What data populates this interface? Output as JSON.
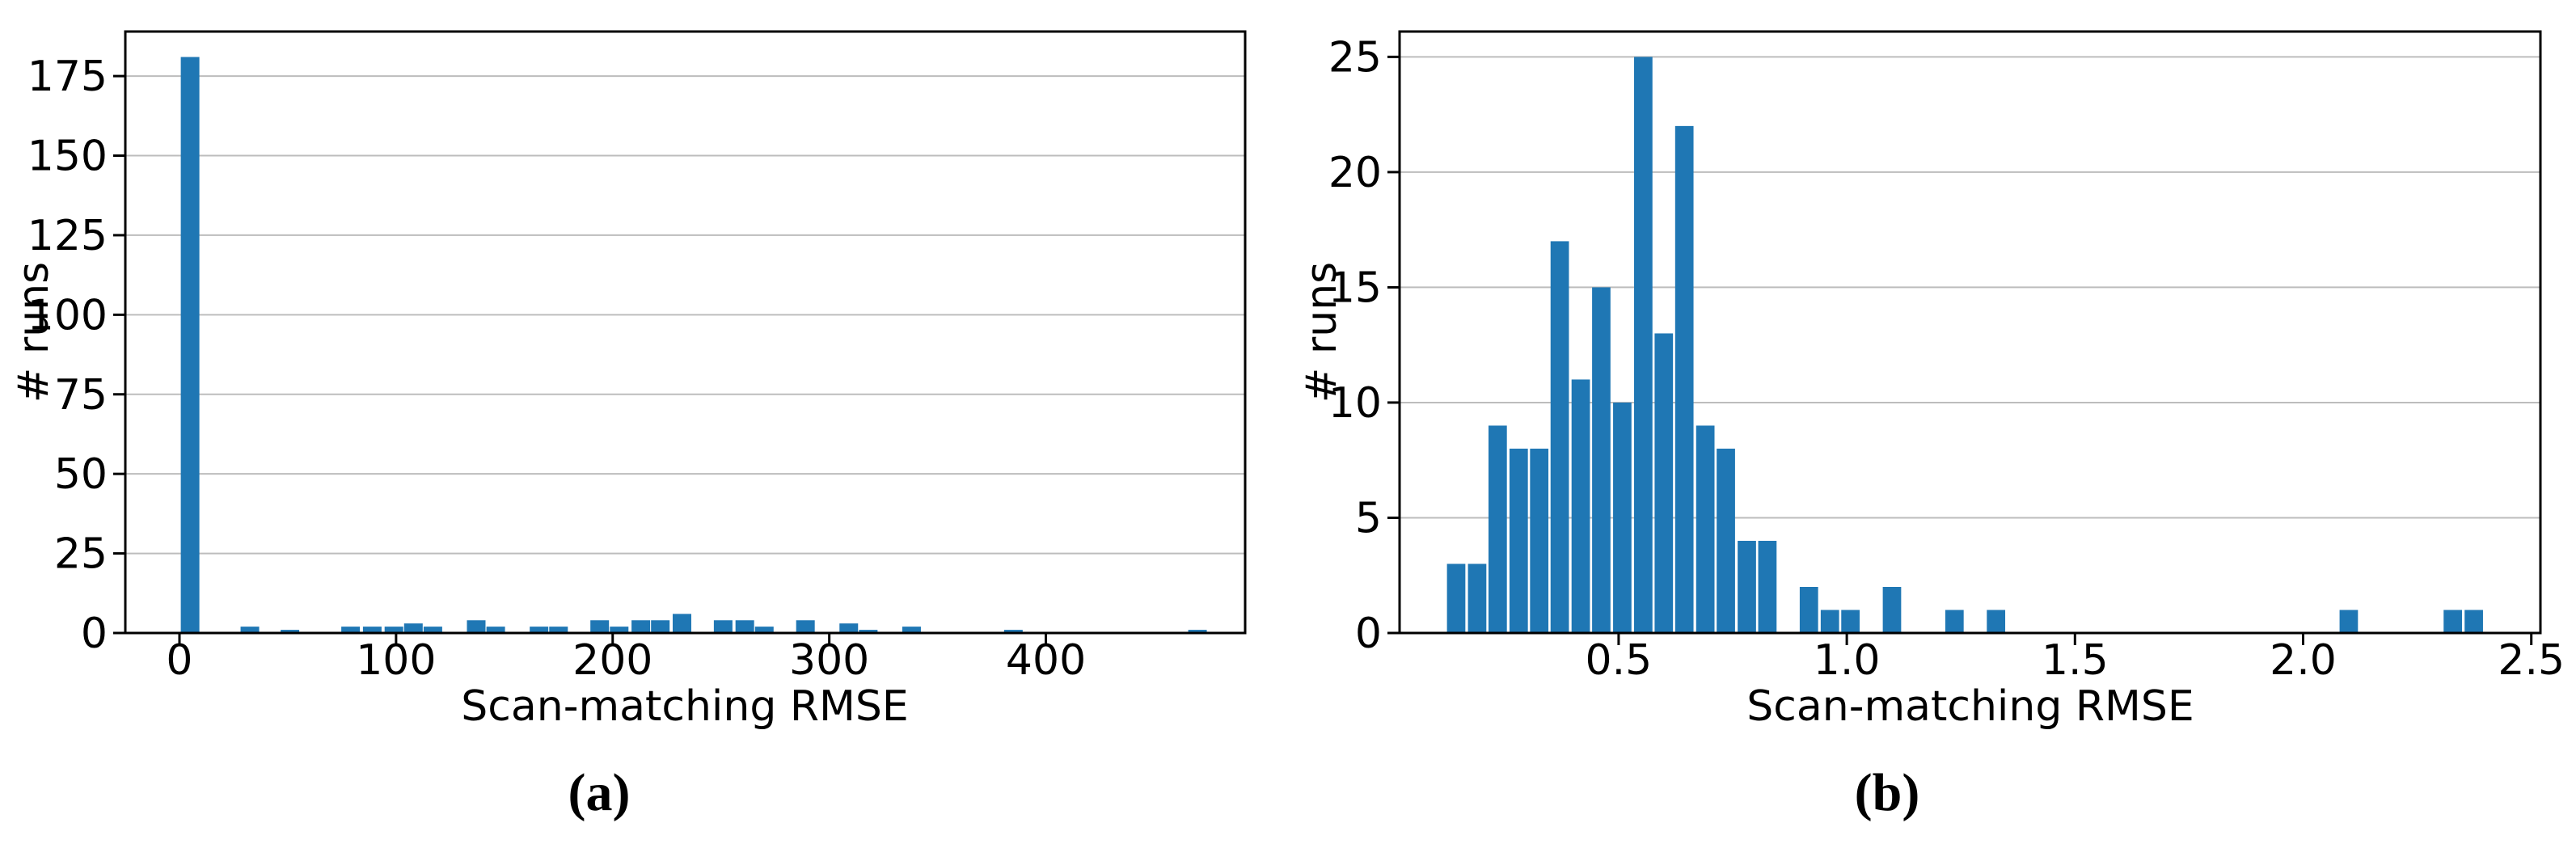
{
  "figure": {
    "bar_color": "#1f77b4",
    "grid_color": "#bdbdbd",
    "axis_color": "#000000",
    "text_color": "#000000",
    "background": "#ffffff"
  },
  "chart_data": [
    {
      "id": "a",
      "type": "bar",
      "caption": "(a)",
      "xlabel": "Scan-matching RMSE",
      "ylabel": "# runs",
      "legend": "none",
      "grid": "horizontal",
      "xlim": [
        -25,
        492
      ],
      "ylim": [
        0,
        189
      ],
      "xticks": [
        {
          "v": 0,
          "label": "0"
        },
        {
          "v": 100,
          "label": "100"
        },
        {
          "v": 200,
          "label": "200"
        },
        {
          "v": 300,
          "label": "300"
        },
        {
          "v": 400,
          "label": "400"
        }
      ],
      "yticks": [
        {
          "v": 0,
          "label": "0"
        },
        {
          "v": 25,
          "label": "25"
        },
        {
          "v": 50,
          "label": "50"
        },
        {
          "v": 75,
          "label": "75"
        },
        {
          "v": 100,
          "label": "100"
        },
        {
          "v": 125,
          "label": "125"
        },
        {
          "v": 150,
          "label": "150"
        },
        {
          "v": 175,
          "label": "175"
        }
      ],
      "bin_width": 9.7,
      "bars": [
        {
          "x": 4.9,
          "h": 181
        },
        {
          "x": 32.5,
          "h": 2
        },
        {
          "x": 51,
          "h": 1
        },
        {
          "x": 79,
          "h": 2
        },
        {
          "x": 89,
          "h": 2
        },
        {
          "x": 99,
          "h": 2
        },
        {
          "x": 108,
          "h": 3
        },
        {
          "x": 117,
          "h": 2
        },
        {
          "x": 137,
          "h": 4
        },
        {
          "x": 146,
          "h": 2
        },
        {
          "x": 166,
          "h": 2
        },
        {
          "x": 175,
          "h": 2
        },
        {
          "x": 194,
          "h": 4
        },
        {
          "x": 203,
          "h": 2
        },
        {
          "x": 213,
          "h": 4
        },
        {
          "x": 222,
          "h": 4
        },
        {
          "x": 232,
          "h": 6
        },
        {
          "x": 251,
          "h": 4
        },
        {
          "x": 261,
          "h": 4
        },
        {
          "x": 270,
          "h": 2
        },
        {
          "x": 289,
          "h": 4
        },
        {
          "x": 309,
          "h": 3
        },
        {
          "x": 318,
          "h": 1
        },
        {
          "x": 338,
          "h": 2
        },
        {
          "x": 385,
          "h": 1
        },
        {
          "x": 470,
          "h": 1
        }
      ]
    },
    {
      "id": "b",
      "type": "bar",
      "caption": "(b)",
      "xlabel": "Scan-matching RMSE",
      "ylabel": "# runs",
      "legend": "none",
      "grid": "horizontal",
      "xlim": [
        0.02,
        2.52
      ],
      "ylim": [
        0,
        26.1
      ],
      "xticks": [
        {
          "v": 0.5,
          "label": "0.5"
        },
        {
          "v": 1.0,
          "label": "1.0"
        },
        {
          "v": 1.5,
          "label": "1.5"
        },
        {
          "v": 2.0,
          "label": "2.0"
        },
        {
          "v": 2.5,
          "label": "2.5"
        }
      ],
      "yticks": [
        {
          "v": 0,
          "label": "0"
        },
        {
          "v": 5,
          "label": "5"
        },
        {
          "v": 10,
          "label": "10"
        },
        {
          "v": 15,
          "label": "15"
        },
        {
          "v": 20,
          "label": "20"
        },
        {
          "v": 25,
          "label": "25"
        }
      ],
      "bin_width": 0.0455,
      "bars": [
        {
          "x": 0.144,
          "h": 3
        },
        {
          "x": 0.19,
          "h": 3
        },
        {
          "x": 0.235,
          "h": 9
        },
        {
          "x": 0.281,
          "h": 8
        },
        {
          "x": 0.326,
          "h": 8
        },
        {
          "x": 0.371,
          "h": 17
        },
        {
          "x": 0.417,
          "h": 11
        },
        {
          "x": 0.462,
          "h": 15
        },
        {
          "x": 0.508,
          "h": 10
        },
        {
          "x": 0.554,
          "h": 25
        },
        {
          "x": 0.599,
          "h": 13
        },
        {
          "x": 0.644,
          "h": 22
        },
        {
          "x": 0.69,
          "h": 9
        },
        {
          "x": 0.735,
          "h": 8
        },
        {
          "x": 0.781,
          "h": 4
        },
        {
          "x": 0.826,
          "h": 4
        },
        {
          "x": 0.917,
          "h": 2
        },
        {
          "x": 0.963,
          "h": 1
        },
        {
          "x": 1.008,
          "h": 1
        },
        {
          "x": 1.099,
          "h": 2
        },
        {
          "x": 1.236,
          "h": 1
        },
        {
          "x": 1.327,
          "h": 1
        },
        {
          "x": 2.1,
          "h": 1
        },
        {
          "x": 2.328,
          "h": 1
        },
        {
          "x": 2.374,
          "h": 1
        }
      ]
    }
  ]
}
